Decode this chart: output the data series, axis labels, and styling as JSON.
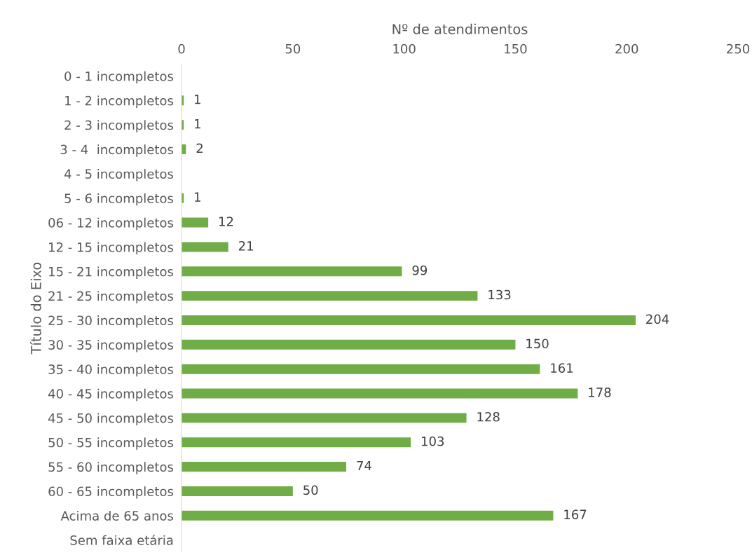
{
  "chart_data": {
    "type": "bar",
    "orientation": "horizontal",
    "xlabel": "Nº de atendimentos",
    "ylabel": "Título do Eixo",
    "categories": [
      "0 - 1 incompletos",
      "1 - 2 incompletos",
      "2 - 3 incompletos",
      "3 - 4  incompletos",
      "4 - 5 incompletos",
      "5 - 6 incompletos",
      "06 - 12 incompletos",
      "12 - 15 incompletos",
      "15 - 21 incompletos",
      "21 - 25 incompletos",
      "25 - 30 incompletos",
      "30 - 35 incompletos",
      "35 - 40 incompletos",
      "40 - 45 incompletos",
      "45 - 50 incompletos",
      "50 - 55 incompletos",
      "55 - 60 incompletos",
      "60 - 65 incompletos",
      "Acima de 65 anos",
      "Sem faixa etária"
    ],
    "values": [
      null,
      1,
      1,
      2,
      null,
      1,
      12,
      21,
      99,
      133,
      204,
      150,
      161,
      178,
      128,
      103,
      74,
      50,
      167,
      null
    ],
    "color": "#70ad47",
    "xlim": [
      0,
      250
    ],
    "xticks": [
      0,
      50,
      100,
      150,
      200,
      250
    ],
    "grid": false,
    "data_labels": true
  }
}
